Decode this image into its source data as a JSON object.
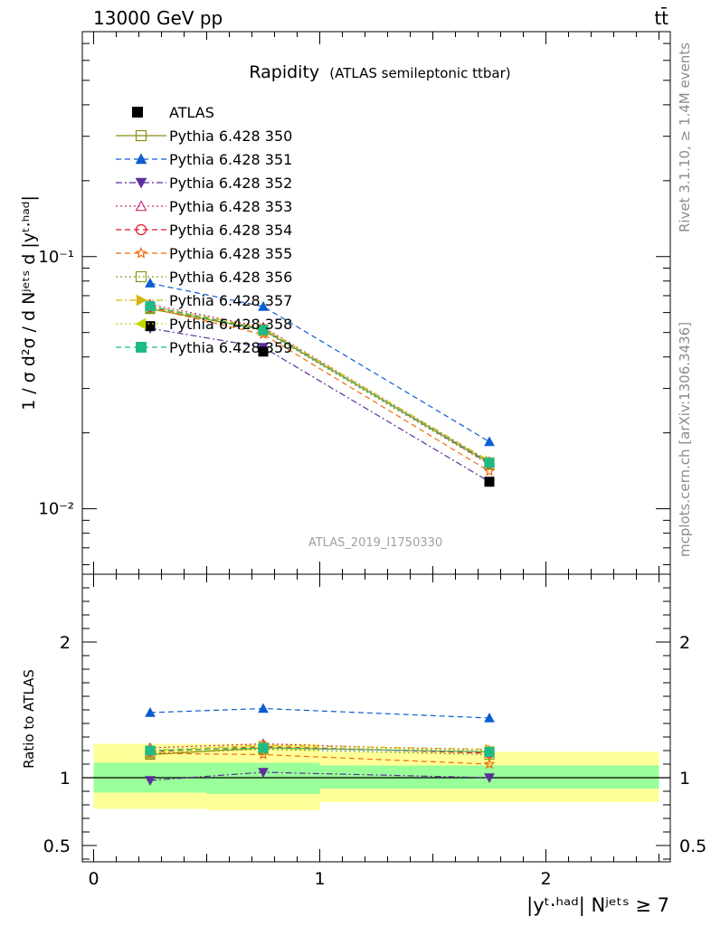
{
  "header": {
    "energy_label": "13000 GeV pp",
    "process_label": "tt̄"
  },
  "side_labels": {
    "rivet": "Rivet 3.1.10, ≥ 1.4M events",
    "mcplots": "mcplots.cern.ch [arXiv:1306.3436]"
  },
  "chart_data": {
    "type": "scatter",
    "title": "Rapidity",
    "subtitle": "(ATLAS semileptonic ttbar)",
    "analysis_id": "ATLAS_2019_I1750330",
    "ylabel": "1 / σ d²σ / d Nʲᵉᵗˢ d |yᵗ·ʰᵃᵈ|",
    "xlabel": "|yᵗ·ʰᵃᵈ| Nʲᵉᵗˢ ≥ 7",
    "ratio_ylabel": "Ratio to ATLAS",
    "x_range": [
      -0.05,
      2.55
    ],
    "y_range": [
      0.0055,
      0.78
    ],
    "y_scale": "log",
    "ratio_range": [
      0.38,
      2.5
    ],
    "x_ticks": [
      "0",
      "1",
      "2"
    ],
    "y_tick_labels": [
      "10⁻²",
      "10⁻¹"
    ],
    "ratio_tick_labels": [
      "0.5",
      "1",
      "2"
    ],
    "legend_placement": "top-left",
    "bins": [
      {
        "lo": 0.0,
        "hi": 0.5
      },
      {
        "lo": 0.5,
        "hi": 1.0
      },
      {
        "lo": 1.0,
        "hi": 2.5
      }
    ],
    "x": [
      0.25,
      0.75,
      1.75
    ],
    "data": {
      "name": "ATLAS",
      "values": [
        0.053,
        0.042,
        0.0128
      ],
      "band_inner": [
        [
          0.89,
          1.11
        ],
        [
          0.88,
          1.11
        ],
        [
          0.92,
          1.09
        ]
      ],
      "band_outer": [
        [
          0.77,
          1.25
        ],
        [
          0.76,
          1.25
        ],
        [
          0.82,
          1.19
        ]
      ]
    },
    "series": [
      {
        "name": "Pythia 6.428 350",
        "color": "#8b8b16",
        "marker": "open-square",
        "dash": "solid",
        "ratio": [
          1.17,
          1.22,
          1.19
        ]
      },
      {
        "name": "Pythia 6.428 351",
        "color": "#0b5ed1",
        "marker": "filled-triangle-up",
        "dash": "dashed",
        "ratio": [
          1.48,
          1.51,
          1.44
        ]
      },
      {
        "name": "Pythia 6.428 352",
        "color": "#5d2f9b",
        "marker": "filled-triangle-down",
        "dash": "dashdot",
        "ratio": [
          0.98,
          1.04,
          1.0
        ]
      },
      {
        "name": "Pythia 6.428 353",
        "color": "#c7317c",
        "marker": "open-triangle-up",
        "dash": "dotted",
        "ratio": [
          1.22,
          1.25,
          1.2
        ]
      },
      {
        "name": "Pythia 6.428 354",
        "color": "#e3142c",
        "marker": "open-circle",
        "dash": "dashed",
        "ratio": [
          1.19,
          1.23,
          1.18
        ]
      },
      {
        "name": "Pythia 6.428 355",
        "color": "#ef6d0a",
        "marker": "open-star",
        "dash": "dashed",
        "ratio": [
          1.18,
          1.17,
          1.1
        ]
      },
      {
        "name": "Pythia 6.428 356",
        "color": "#869a1a",
        "marker": "open-square",
        "dash": "dotted",
        "ratio": [
          1.18,
          1.21,
          1.17
        ]
      },
      {
        "name": "Pythia 6.428 357",
        "color": "#d3b40e",
        "marker": "filled-triangle-right",
        "dash": "dashdot",
        "ratio": [
          1.2,
          1.24,
          1.21
        ]
      },
      {
        "name": "Pythia 6.428 358",
        "color": "#c5d40b",
        "marker": "filled-triangle-left",
        "dash": "dotted",
        "ratio": [
          1.19,
          1.23,
          1.2
        ]
      },
      {
        "name": "Pythia 6.428 359",
        "color": "#1fbb86",
        "marker": "filled-square",
        "dash": "dashed",
        "ratio": [
          1.2,
          1.22,
          1.19
        ]
      }
    ]
  }
}
